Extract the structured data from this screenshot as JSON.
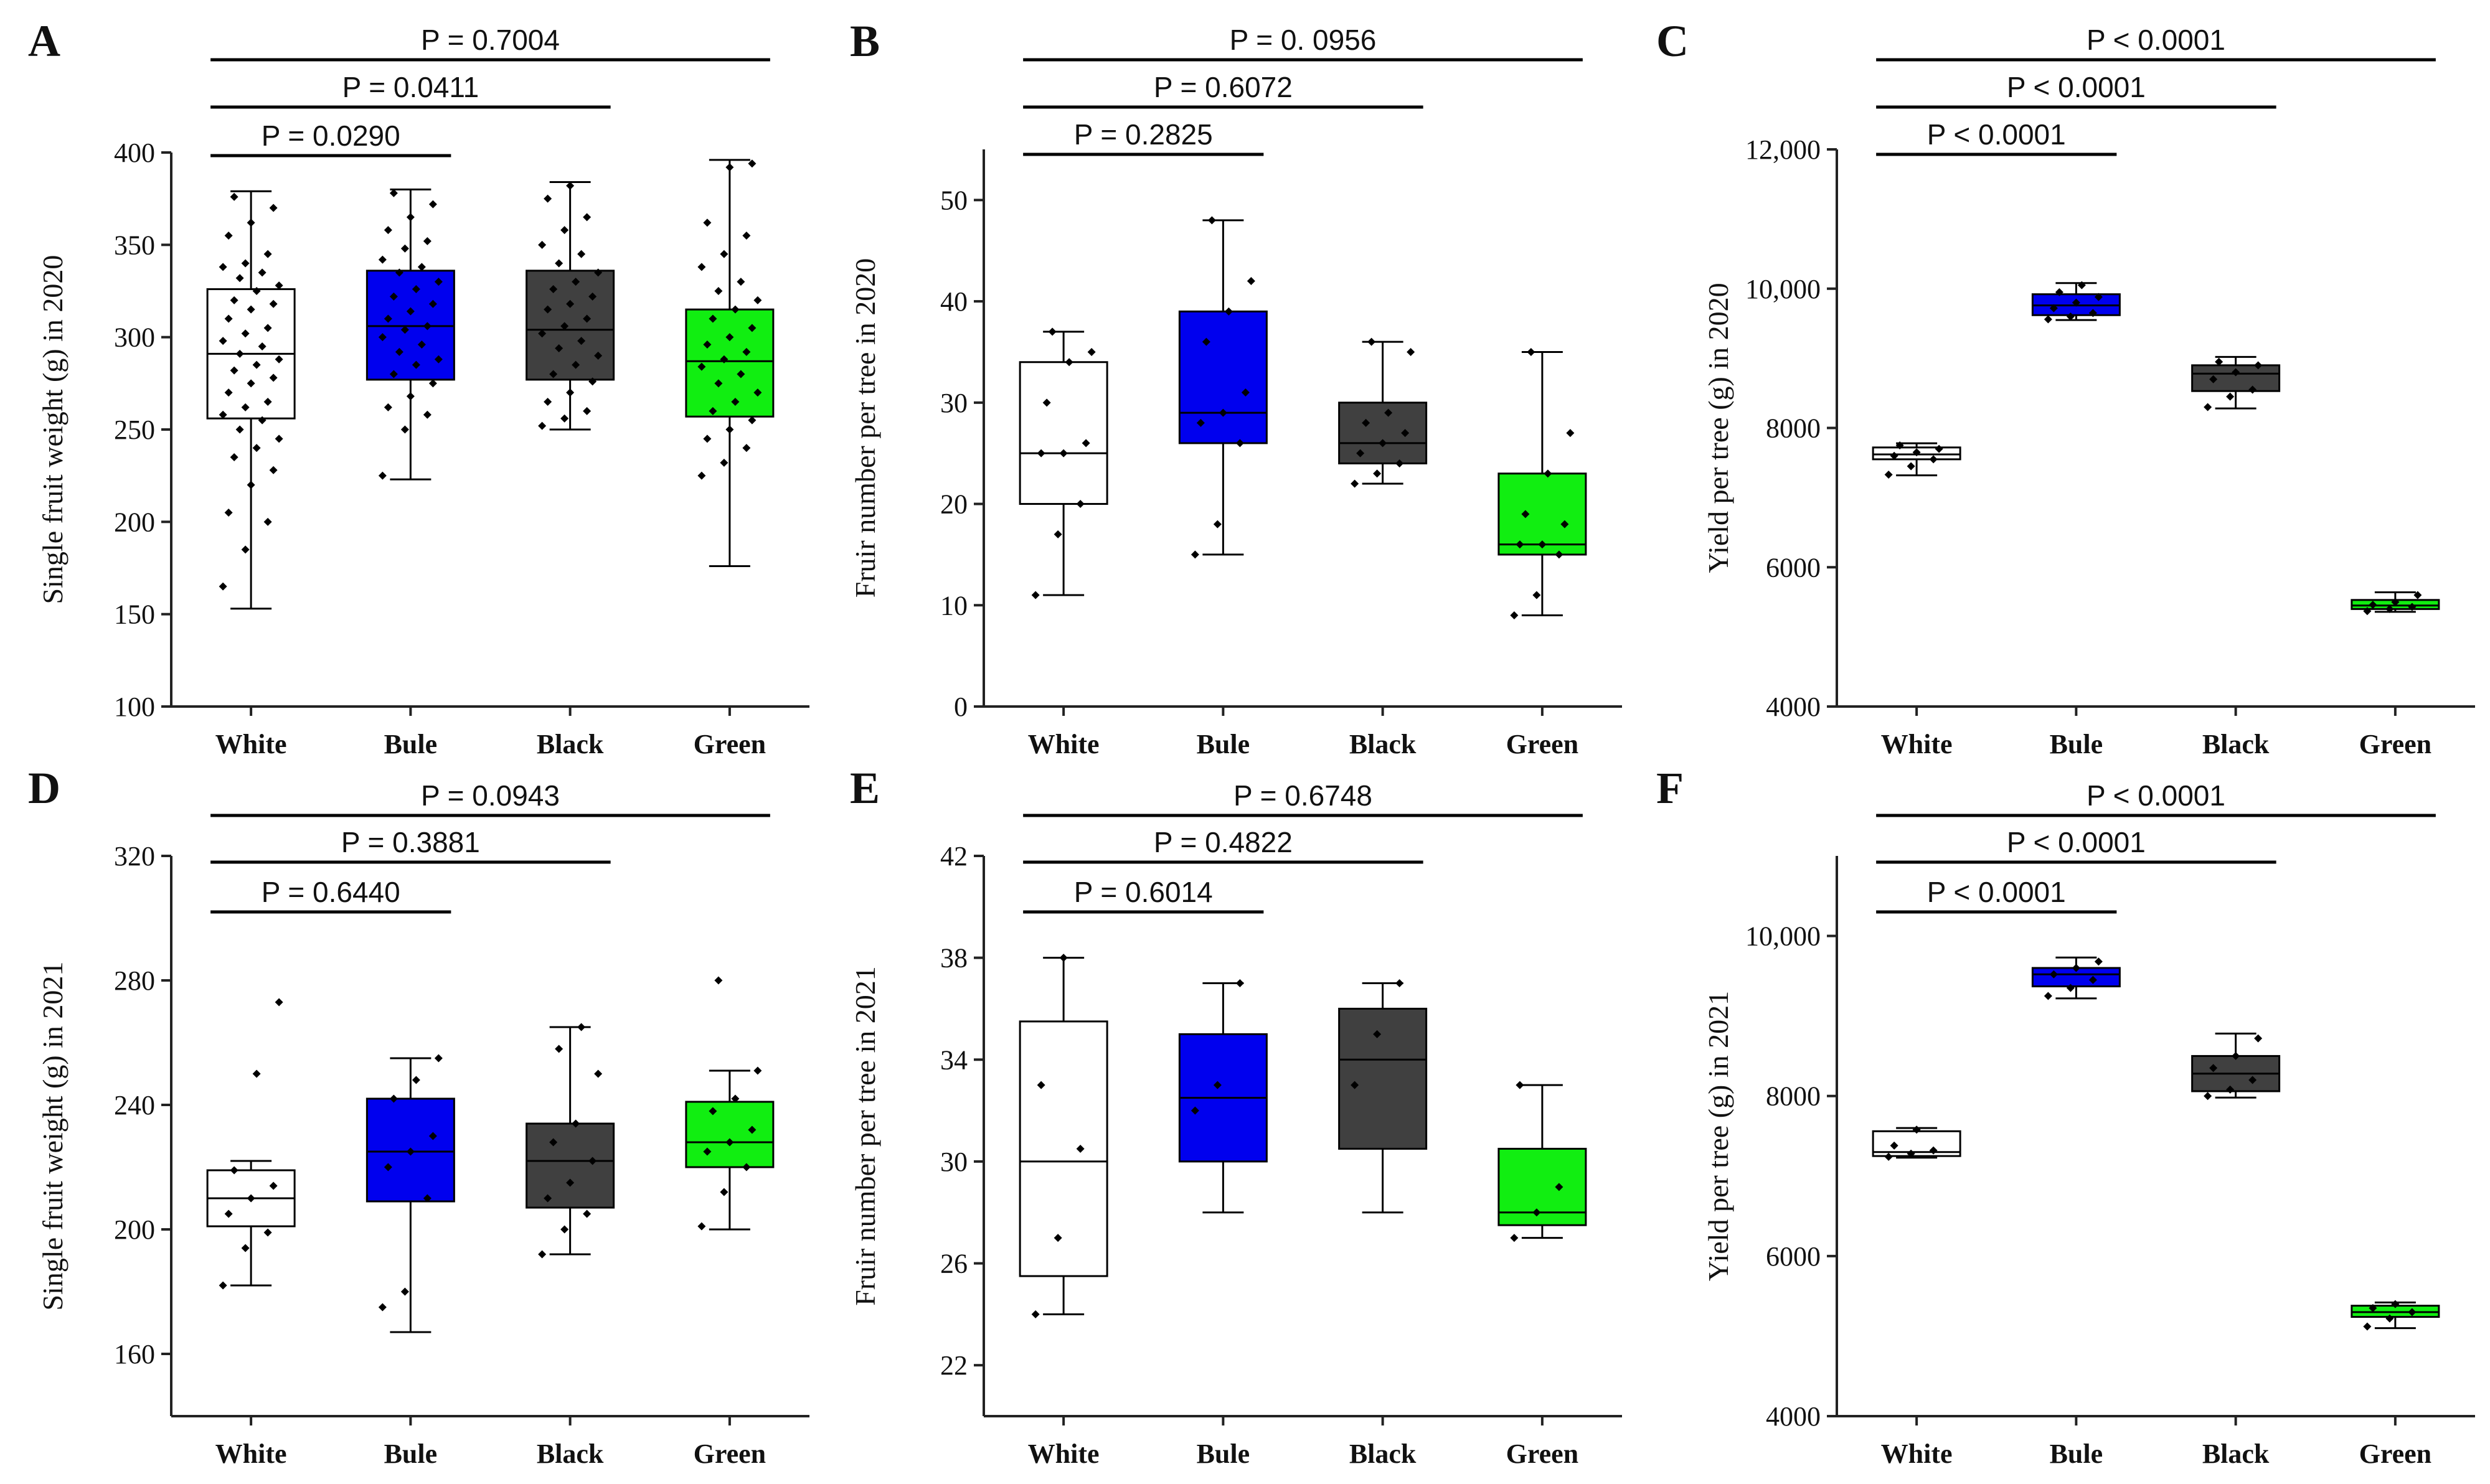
{
  "colors": {
    "White": "#ffffff",
    "Bule": "#0000ee",
    "Black": "#404040",
    "Green": "#11ee11"
  },
  "chart_data": [
    {
      "panel": "A",
      "type": "box",
      "ylabel": "Single fruit weight (g) in 2020",
      "categories": [
        "White",
        "Bule",
        "Black",
        "Green"
      ],
      "ylim": [
        100,
        400
      ],
      "yticks": [
        100,
        150,
        200,
        250,
        300,
        350,
        400
      ],
      "ytick_labels": [
        "100",
        "150",
        "200",
        "250",
        "300",
        "350",
        "400"
      ],
      "boxes": [
        {
          "name": "White",
          "min": 153,
          "q1": 256,
          "median": 291,
          "q3": 326,
          "max": 379,
          "points": [
            165,
            185,
            200,
            205,
            220,
            228,
            235,
            240,
            245,
            250,
            255,
            258,
            262,
            265,
            270,
            275,
            278,
            282,
            285,
            288,
            291,
            295,
            298,
            302,
            305,
            310,
            315,
            318,
            320,
            325,
            328,
            332,
            335,
            338,
            340,
            345,
            355,
            362,
            370,
            376
          ]
        },
        {
          "name": "Bule",
          "min": 223,
          "q1": 277,
          "median": 306,
          "q3": 336,
          "max": 380,
          "points": [
            225,
            250,
            258,
            262,
            268,
            275,
            280,
            285,
            288,
            292,
            296,
            300,
            304,
            306,
            310,
            314,
            318,
            322,
            326,
            330,
            335,
            338,
            342,
            348,
            352,
            358,
            365,
            372,
            378
          ]
        },
        {
          "name": "Black",
          "min": 250,
          "q1": 277,
          "median": 304,
          "q3": 336,
          "max": 384,
          "points": [
            252,
            256,
            260,
            265,
            270,
            276,
            280,
            285,
            290,
            294,
            298,
            302,
            306,
            310,
            315,
            318,
            322,
            326,
            330,
            335,
            340,
            345,
            350,
            358,
            365,
            375,
            382
          ]
        },
        {
          "name": "Green",
          "min": 176,
          "q1": 257,
          "median": 287,
          "q3": 315,
          "max": 396,
          "points": [
            225,
            232,
            240,
            245,
            250,
            255,
            260,
            265,
            270,
            275,
            280,
            284,
            288,
            292,
            296,
            300,
            305,
            310,
            315,
            320,
            325,
            330,
            338,
            345,
            355,
            362,
            392,
            394
          ]
        }
      ],
      "comparisons": [
        {
          "label": "P = 0.0290"
        },
        {
          "label": "P = 0.0411"
        },
        {
          "label": "P = 0.7004"
        }
      ]
    },
    {
      "panel": "B",
      "type": "box",
      "ylabel": "Fruir number per tree in 2020",
      "categories": [
        "White",
        "Bule",
        "Black",
        "Green"
      ],
      "ylim": [
        0,
        55
      ],
      "yticks": [
        0,
        10,
        20,
        30,
        40,
        50
      ],
      "ytick_labels": [
        "0",
        "10",
        "20",
        "30",
        "40",
        "50"
      ],
      "boxes": [
        {
          "name": "White",
          "min": 11,
          "q1": 20,
          "median": 25,
          "q3": 34,
          "max": 37,
          "points": [
            11,
            17,
            20,
            25,
            25,
            26,
            30,
            34,
            35,
            37
          ]
        },
        {
          "name": "Bule",
          "min": 15,
          "q1": 26,
          "median": 29,
          "q3": 39,
          "max": 48,
          "points": [
            15,
            18,
            26,
            28,
            29,
            31,
            36,
            39,
            42,
            48
          ]
        },
        {
          "name": "Black",
          "min": 22,
          "q1": 24,
          "median": 26,
          "q3": 30,
          "max": 36,
          "points": [
            22,
            23,
            24,
            25,
            26,
            27,
            28,
            29,
            35,
            36
          ]
        },
        {
          "name": "Green",
          "min": 9,
          "q1": 15,
          "median": 16,
          "q3": 23,
          "max": 35,
          "points": [
            9,
            11,
            15,
            16,
            16,
            18,
            19,
            23,
            27,
            35
          ]
        }
      ],
      "comparisons": [
        {
          "label": "P = 0.2825"
        },
        {
          "label": "P = 0.6072"
        },
        {
          "label": "P = 0. 0956"
        }
      ]
    },
    {
      "panel": "C",
      "type": "box",
      "ylabel": "Yield per tree (g) in 2020",
      "categories": [
        "White",
        "Bule",
        "Black",
        "Green"
      ],
      "ylim": [
        4000,
        12000
      ],
      "yticks": [
        4000,
        6000,
        8000,
        10000,
        12000
      ],
      "ytick_labels": [
        "4000",
        "6000",
        "8000",
        "10,000",
        "12,000"
      ],
      "boxes": [
        {
          "name": "White",
          "min": 7320,
          "q1": 7550,
          "median": 7620,
          "q3": 7720,
          "max": 7780,
          "points": [
            7330,
            7450,
            7550,
            7600,
            7650,
            7700,
            7750
          ]
        },
        {
          "name": "Bule",
          "min": 9550,
          "q1": 9620,
          "median": 9760,
          "q3": 9920,
          "max": 10080,
          "points": [
            9560,
            9600,
            9650,
            9720,
            9800,
            9880,
            9950,
            10050
          ]
        },
        {
          "name": "Black",
          "min": 8280,
          "q1": 8530,
          "median": 8780,
          "q3": 8900,
          "max": 9020,
          "points": [
            8300,
            8450,
            8550,
            8700,
            8800,
            8900,
            8950
          ]
        },
        {
          "name": "Green",
          "min": 5360,
          "q1": 5400,
          "median": 5450,
          "q3": 5530,
          "max": 5640,
          "points": [
            5370,
            5400,
            5430,
            5460,
            5500,
            5600
          ]
        }
      ],
      "comparisons": [
        {
          "label": "P < 0.0001"
        },
        {
          "label": "P < 0.0001"
        },
        {
          "label": "P < 0.0001"
        }
      ]
    },
    {
      "panel": "D",
      "type": "box",
      "ylabel": "Single fruit weight (g) in 2021",
      "categories": [
        "White",
        "Bule",
        "Black",
        "Green"
      ],
      "ylim": [
        140,
        320
      ],
      "yticks": [
        160,
        200,
        240,
        280,
        320
      ],
      "ytick_labels": [
        "160",
        "200",
        "240",
        "280",
        "320"
      ],
      "boxes": [
        {
          "name": "White",
          "min": 182,
          "q1": 201,
          "median": 210,
          "q3": 219,
          "max": 222,
          "points": [
            182,
            194,
            199,
            205,
            210,
            214,
            219,
            250,
            273
          ]
        },
        {
          "name": "Bule",
          "min": 167,
          "q1": 209,
          "median": 225,
          "q3": 242,
          "max": 255,
          "points": [
            175,
            180,
            210,
            220,
            225,
            230,
            242,
            248,
            255
          ]
        },
        {
          "name": "Black",
          "min": 192,
          "q1": 207,
          "median": 222,
          "q3": 234,
          "max": 265,
          "points": [
            192,
            200,
            205,
            210,
            215,
            222,
            228,
            234,
            250,
            258,
            265
          ]
        },
        {
          "name": "Green",
          "min": 200,
          "q1": 220,
          "median": 228,
          "q3": 241,
          "max": 251,
          "points": [
            201,
            212,
            220,
            225,
            228,
            232,
            238,
            242,
            251,
            280
          ]
        }
      ],
      "comparisons": [
        {
          "label": "P = 0.6440"
        },
        {
          "label": "P = 0.3881"
        },
        {
          "label": "P = 0.0943"
        }
      ]
    },
    {
      "panel": "E",
      "type": "box",
      "ylabel": "Fruir number per tree in 2021",
      "categories": [
        "White",
        "Bule",
        "Black",
        "Green"
      ],
      "ylim": [
        20,
        42
      ],
      "yticks": [
        22,
        26,
        30,
        34,
        38,
        42
      ],
      "ytick_labels": [
        "22",
        "26",
        "30",
        "34",
        "38",
        "42"
      ],
      "boxes": [
        {
          "name": "White",
          "min": 24,
          "q1": 25.5,
          "median": 30,
          "q3": 35.5,
          "max": 38,
          "points": [
            24,
            27,
            30.5,
            33,
            38
          ]
        },
        {
          "name": "Bule",
          "min": 28,
          "q1": 30,
          "median": 32.5,
          "q3": 35,
          "max": 37,
          "points": [
            32,
            33,
            37
          ]
        },
        {
          "name": "Black",
          "min": 28,
          "q1": 30.5,
          "median": 34,
          "q3": 36,
          "max": 37,
          "points": [
            33,
            35,
            37
          ]
        },
        {
          "name": "Green",
          "min": 27,
          "q1": 27.5,
          "median": 28,
          "q3": 30.5,
          "max": 33,
          "points": [
            27,
            28,
            29,
            33
          ]
        }
      ],
      "comparisons": [
        {
          "label": "P = 0.6014"
        },
        {
          "label": "P = 0.4822"
        },
        {
          "label": "P = 0.6748"
        }
      ]
    },
    {
      "panel": "F",
      "type": "box",
      "ylabel": "Yield per tree (g) in 2021",
      "categories": [
        "White",
        "Bule",
        "Black",
        "Green"
      ],
      "ylim": [
        4000,
        11000
      ],
      "yticks": [
        4000,
        6000,
        8000,
        10000
      ],
      "ytick_labels": [
        "4000",
        "6000",
        "8000",
        "10,000"
      ],
      "boxes": [
        {
          "name": "White",
          "min": 7230,
          "q1": 7250,
          "median": 7300,
          "q3": 7560,
          "max": 7600,
          "points": [
            7240,
            7280,
            7320,
            7380,
            7580
          ]
        },
        {
          "name": "Bule",
          "min": 9220,
          "q1": 9370,
          "median": 9520,
          "q3": 9600,
          "max": 9730,
          "points": [
            9250,
            9350,
            9450,
            9520,
            9600,
            9680
          ]
        },
        {
          "name": "Black",
          "min": 7980,
          "q1": 8060,
          "median": 8280,
          "q3": 8500,
          "max": 8780,
          "points": [
            8000,
            8080,
            8200,
            8350,
            8500,
            8720
          ]
        },
        {
          "name": "Green",
          "min": 5100,
          "q1": 5240,
          "median": 5300,
          "q3": 5380,
          "max": 5420,
          "points": [
            5120,
            5220,
            5300,
            5350,
            5400
          ]
        }
      ],
      "comparisons": [
        {
          "label": "P < 0.0001"
        },
        {
          "label": "P < 0.0001"
        },
        {
          "label": "P < 0.0001"
        }
      ]
    }
  ]
}
